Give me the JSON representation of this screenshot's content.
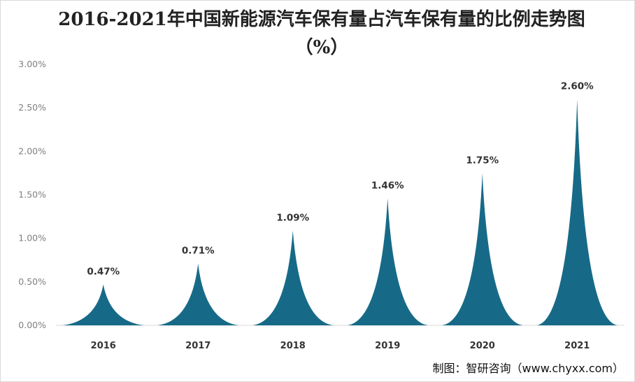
{
  "title": "2016-2021年中国新能源汽车保有量占汽车保有量的比例走势图（%）",
  "source_credit": "制图：智研咨询（www.chyxx.com）",
  "colors": {
    "bar": "#176a87",
    "axis": "#d9d9d9",
    "text": "#333333"
  },
  "chart_data": {
    "type": "bar",
    "bar_style": "concave-triangle",
    "title": "2016-2021年中国新能源汽车保有量占汽车保有量的比例走势图（%）",
    "categories": [
      "2016",
      "2017",
      "2018",
      "2019",
      "2020",
      "2021"
    ],
    "values": [
      0.47,
      0.71,
      1.09,
      1.46,
      1.75,
      2.6
    ],
    "data_labels": [
      "0.47%",
      "0.71%",
      "1.09%",
      "1.46%",
      "1.75%",
      "2.60%"
    ],
    "y_ticks": [
      0,
      0.5,
      1,
      1.5,
      2,
      2.5,
      3
    ],
    "y_tick_labels": [
      "0.00%",
      "0.50%",
      "1.00%",
      "1.50%",
      "2.00%",
      "2.50%",
      "3.00%"
    ],
    "ylim": [
      0,
      3
    ],
    "xlabel": "",
    "ylabel": "",
    "grid": false,
    "legend": "none"
  }
}
